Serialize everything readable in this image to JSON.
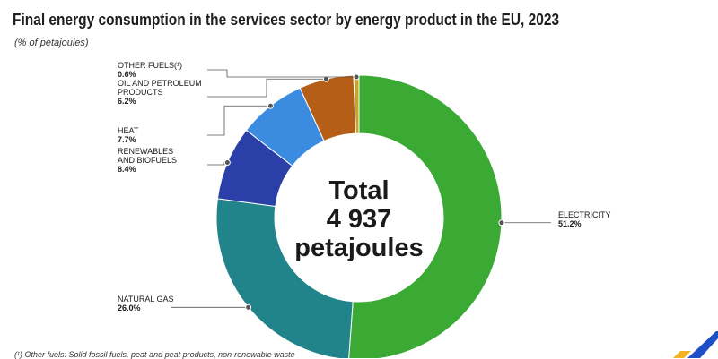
{
  "title": "Final energy consumption in the services sector by energy product in the EU, 2023",
  "subtitle": "(% of petajoules)",
  "footnote": "(¹) Other fuels: Solid fossil fuels, peat and peat products, non-renewable waste",
  "center": {
    "line1": "Total",
    "line2": "4 937",
    "line3": "petajoules"
  },
  "colors": {
    "electricity": "#3aaa35",
    "natural_gas": "#21848a",
    "renewables": "#2a40a8",
    "heat": "#3b8be0",
    "oil": "#b55e17",
    "other": "#c8a32a",
    "logo_blue": "#1e4fc7",
    "logo_yellow": "#f2b424"
  },
  "chart_data": {
    "type": "pie",
    "title": "Final energy consumption in the services sector by energy product in the EU, 2023",
    "unit": "% of petajoules",
    "start": "top",
    "direction": "clockwise",
    "donut": true,
    "slices": [
      {
        "label": "ELECTRICITY",
        "value": 51.2,
        "value_label": "51.2%",
        "color": "#3aaa35"
      },
      {
        "label": "NATURAL GAS",
        "value": 26.0,
        "value_label": "26.0%",
        "color": "#21848a"
      },
      {
        "label": "RENEWABLES AND BIOFUELS",
        "value": 8.4,
        "value_label": "8.4%",
        "color": "#2a40a8"
      },
      {
        "label": "HEAT",
        "value": 7.7,
        "value_label": "7.7%",
        "color": "#3b8be0"
      },
      {
        "label": "OIL AND PETROLEUM PRODUCTS",
        "value": 6.2,
        "value_label": "6.2%",
        "color": "#b55e17"
      },
      {
        "label": "OTHER FUELS(¹)",
        "value": 0.6,
        "value_label": "0.6%",
        "color": "#c8a32a"
      }
    ]
  }
}
